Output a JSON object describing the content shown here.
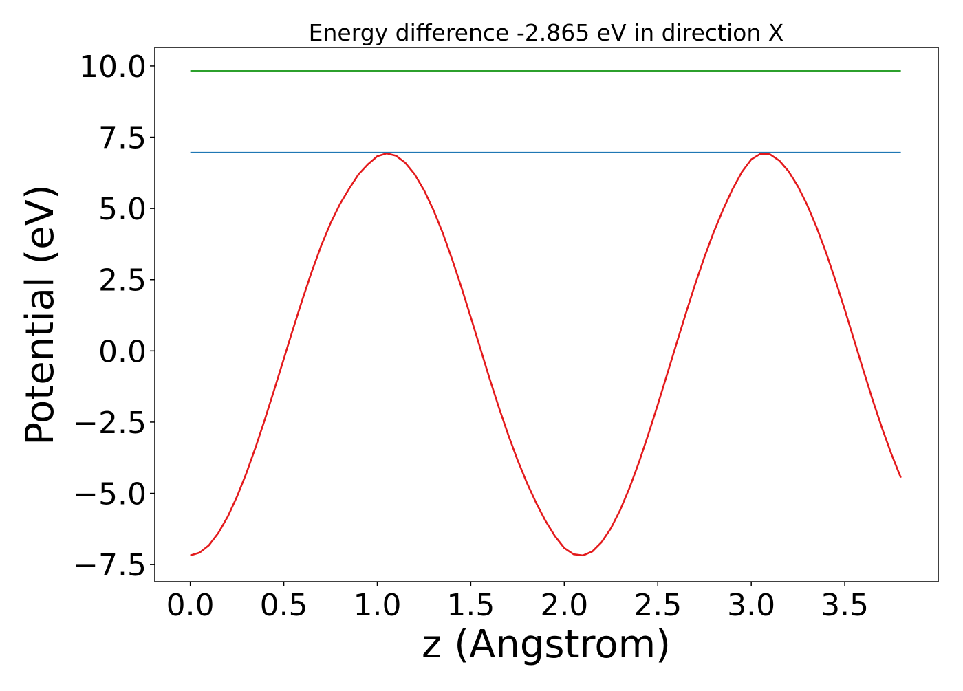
{
  "chart_data": {
    "type": "line",
    "title": "Energy difference -2.865 eV in direction X",
    "xlabel": "z (Angstrom)",
    "ylabel": "Potential (eV)",
    "xlim": [
      -0.19,
      4.0
    ],
    "ylim": [
      -8.1,
      10.65
    ],
    "xticks": [
      0.0,
      0.5,
      1.0,
      1.5,
      2.0,
      2.5,
      3.0,
      3.5
    ],
    "xtick_labels": [
      "0.0",
      "0.5",
      "1.0",
      "1.5",
      "2.0",
      "2.5",
      "3.0",
      "3.5"
    ],
    "yticks": [
      -7.5,
      -5.0,
      -2.5,
      0.0,
      2.5,
      5.0,
      7.5,
      10.0
    ],
    "ytick_labels": [
      "−7.5",
      "−5.0",
      "−2.5",
      "0.0",
      "2.5",
      "5.0",
      "7.5",
      "10.0"
    ],
    "grid": false,
    "legend": "none",
    "series": [
      {
        "color": "#2ca02c",
        "x": [
          0.0,
          3.8
        ],
        "y": [
          9.83,
          9.83
        ]
      },
      {
        "color": "#1f77b4",
        "x": [
          0.0,
          3.8
        ],
        "y": [
          6.96,
          6.96
        ]
      },
      {
        "color": "#e31a1c",
        "x": [
          0.0,
          0.05,
          0.1,
          0.15,
          0.2,
          0.25,
          0.3,
          0.35,
          0.4,
          0.45,
          0.5,
          0.55,
          0.6,
          0.65,
          0.7,
          0.75,
          0.8,
          0.85,
          0.9,
          0.95,
          1.0,
          1.05,
          1.1,
          1.15,
          1.2,
          1.25,
          1.3,
          1.35,
          1.4,
          1.45,
          1.5,
          1.55,
          1.6,
          1.65,
          1.7,
          1.75,
          1.8,
          1.85,
          1.9,
          1.95,
          2.0,
          2.05,
          2.1,
          2.15,
          2.2,
          2.25,
          2.3,
          2.35,
          2.4,
          2.45,
          2.5,
          2.55,
          2.6,
          2.65,
          2.7,
          2.75,
          2.8,
          2.85,
          2.9,
          2.95,
          3.0,
          3.05,
          3.1,
          3.15,
          3.2,
          3.25,
          3.3,
          3.35,
          3.4,
          3.45,
          3.5,
          3.55,
          3.6,
          3.65,
          3.7,
          3.75,
          3.8
        ],
        "y": [
          -7.18,
          -7.08,
          -6.82,
          -6.39,
          -5.82,
          -5.11,
          -4.29,
          -3.37,
          -2.38,
          -1.34,
          -0.28,
          0.78,
          1.81,
          2.79,
          3.69,
          4.48,
          5.15,
          5.7,
          6.2,
          6.55,
          6.83,
          6.93,
          6.85,
          6.6,
          6.2,
          5.64,
          4.95,
          4.14,
          3.22,
          2.23,
          1.18,
          0.11,
          -0.96,
          -1.98,
          -2.94,
          -3.83,
          -4.63,
          -5.34,
          -5.97,
          -6.5,
          -6.92,
          -7.14,
          -7.18,
          -7.04,
          -6.71,
          -6.22,
          -5.57,
          -4.79,
          -3.9,
          -2.92,
          -1.89,
          -0.82,
          0.25,
          1.31,
          2.34,
          3.3,
          4.18,
          4.97,
          5.68,
          6.28,
          6.72,
          6.92,
          6.9,
          6.68,
          6.3,
          5.77,
          5.11,
          4.33,
          3.45,
          2.48,
          1.45,
          0.38,
          -0.69,
          -1.74,
          -2.72,
          -3.63,
          -4.45
        ]
      }
    ]
  }
}
